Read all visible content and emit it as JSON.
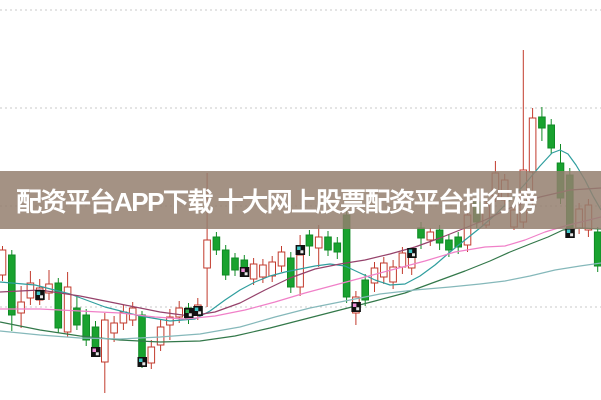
{
  "banner": {
    "headline": "配资平台APP下载 十大网上股票配资平台排行榜",
    "bg_color": "rgba(148,127,111,0.85)",
    "text_color": "#ffffff"
  },
  "chart_data": {
    "type": "candlestick",
    "title": "",
    "xlabel": "",
    "ylabel": "",
    "grid": "dashed-horizontal",
    "legend": "none",
    "axis_labels_visible": false,
    "note": "values are in chart units v; pixel y = 400 - v; inverted unlabeled price axis",
    "ylim": [
      0,
      400
    ],
    "x0": 2.5,
    "pitch": 9.3,
    "candle_width": 6.6,
    "gridline_values": [
      390,
      292,
      194,
      93
    ],
    "candles": [
      [
        125,
        154,
        119,
        150
      ],
      [
        145,
        150,
        69,
        85
      ],
      [
        87,
        114,
        72,
        98
      ],
      [
        102,
        129,
        95,
        117
      ],
      [
        100,
        121,
        95,
        112
      ],
      [
        107,
        130,
        100,
        116
      ],
      [
        117,
        122,
        67,
        72
      ],
      [
        68,
        128,
        63,
        113
      ],
      [
        92,
        103,
        70,
        75
      ],
      [
        85,
        91,
        54,
        60
      ],
      [
        73,
        79,
        47,
        52
      ],
      [
        38,
        87,
        7,
        80
      ],
      [
        67,
        84,
        58,
        77
      ],
      [
        77,
        95,
        70,
        88
      ],
      [
        80,
        98,
        74,
        92
      ],
      [
        85,
        89,
        32,
        38
      ],
      [
        37,
        60,
        31,
        53
      ],
      [
        55,
        80,
        49,
        73
      ],
      [
        75,
        91,
        60,
        83
      ],
      [
        83,
        99,
        77,
        92
      ],
      [
        92,
        97,
        76,
        82
      ],
      [
        85,
        102,
        80,
        95
      ],
      [
        132,
        227,
        93,
        160
      ],
      [
        163,
        168,
        145,
        150
      ],
      [
        150,
        155,
        120,
        125
      ],
      [
        142,
        147,
        124,
        130
      ],
      [
        140,
        145,
        124,
        130
      ],
      [
        121,
        142,
        115,
        136
      ],
      [
        123,
        141,
        117,
        135
      ],
      [
        124,
        144,
        118,
        138
      ],
      [
        134,
        154,
        128,
        148
      ],
      [
        142,
        148,
        107,
        113
      ],
      [
        113,
        165,
        104,
        145
      ],
      [
        165,
        170,
        144,
        154
      ],
      [
        152,
        175,
        133,
        163
      ],
      [
        163,
        169,
        144,
        150
      ],
      [
        157,
        163,
        141,
        148
      ],
      [
        185,
        190,
        97,
        103
      ],
      [
        87,
        109,
        75,
        103
      ],
      [
        120,
        126,
        94,
        100
      ],
      [
        117,
        138,
        108,
        132
      ],
      [
        123,
        143,
        116,
        137
      ],
      [
        118,
        140,
        111,
        133
      ],
      [
        133,
        153,
        126,
        147
      ],
      [
        132,
        151,
        125,
        145
      ],
      [
        172,
        178,
        151,
        162
      ],
      [
        160,
        172,
        154,
        168
      ],
      [
        170,
        175,
        150,
        157
      ],
      [
        160,
        165,
        143,
        150
      ],
      [
        163,
        168,
        146,
        153
      ],
      [
        155,
        192,
        148,
        185
      ],
      [
        198,
        204,
        172,
        178
      ],
      [
        175,
        202,
        172,
        195
      ],
      [
        204,
        239,
        198,
        227
      ],
      [
        200,
        226,
        193,
        220
      ],
      [
        173,
        198,
        170,
        190
      ],
      [
        178,
        350,
        172,
        230
      ],
      [
        228,
        292,
        195,
        282
      ],
      [
        283,
        293,
        259,
        272
      ],
      [
        275,
        281,
        246,
        252
      ],
      [
        237,
        256,
        196,
        202
      ],
      [
        225,
        232,
        166,
        172
      ],
      [
        172,
        197,
        166,
        191
      ],
      [
        170,
        201,
        163,
        195
      ],
      [
        168,
        173,
        128,
        134
      ]
    ],
    "event_markers": [
      {
        "i": 4,
        "v": 105,
        "kind": "teal"
      },
      {
        "i": 10,
        "v": 48,
        "kind": "pink"
      },
      {
        "i": 15,
        "v": 38,
        "kind": "teal"
      },
      {
        "i": 20,
        "v": 87,
        "kind": "green"
      },
      {
        "i": 21,
        "v": 89,
        "kind": "teal"
      },
      {
        "i": 26,
        "v": 128,
        "kind": "pink"
      },
      {
        "i": 32,
        "v": 150,
        "kind": "teal"
      },
      {
        "i": 38,
        "v": 93,
        "kind": "pink"
      },
      {
        "i": 44,
        "v": 147,
        "kind": "teal"
      },
      {
        "i": 61,
        "v": 167,
        "kind": "teal"
      }
    ],
    "ma_series": [
      {
        "name": "ma-teal-fast",
        "color": "#2f9e9e",
        "points": [
          [
            0,
            118
          ],
          [
            35,
            115
          ],
          [
            70,
            106
          ],
          [
            105,
            93
          ],
          [
            140,
            84
          ],
          [
            170,
            79
          ],
          [
            195,
            81
          ],
          [
            210,
            89
          ],
          [
            225,
            100
          ],
          [
            240,
            110
          ],
          [
            255,
            118
          ],
          [
            270,
            124
          ],
          [
            285,
            128
          ],
          [
            300,
            131
          ],
          [
            315,
            134
          ],
          [
            330,
            136
          ],
          [
            345,
            134
          ],
          [
            360,
            127
          ],
          [
            375,
            120
          ],
          [
            390,
            115
          ],
          [
            405,
            116
          ],
          [
            420,
            124
          ],
          [
            435,
            135
          ],
          [
            450,
            148
          ],
          [
            465,
            160
          ],
          [
            480,
            172
          ],
          [
            495,
            185
          ],
          [
            510,
            200
          ],
          [
            525,
            216
          ],
          [
            540,
            234
          ],
          [
            552,
            247
          ],
          [
            560,
            250
          ],
          [
            568,
            246
          ],
          [
            576,
            235
          ],
          [
            585,
            220
          ],
          [
            593,
            204
          ],
          [
            601,
            190
          ]
        ]
      },
      {
        "name": "ma-maroon",
        "color": "#95426b",
        "points": [
          [
            0,
            108
          ],
          [
            40,
            110
          ],
          [
            80,
            104
          ],
          [
            120,
            96
          ],
          [
            160,
            88
          ],
          [
            190,
            84
          ],
          [
            215,
            88
          ],
          [
            240,
            97
          ],
          [
            265,
            110
          ],
          [
            290,
            122
          ],
          [
            315,
            131
          ],
          [
            340,
            136
          ],
          [
            365,
            140
          ],
          [
            390,
            146
          ],
          [
            415,
            153
          ],
          [
            440,
            162
          ],
          [
            465,
            172
          ],
          [
            485,
            180
          ],
          [
            510,
            192
          ],
          [
            540,
            203
          ],
          [
            570,
            210
          ],
          [
            601,
            212
          ]
        ]
      },
      {
        "name": "ma-pink",
        "color": "#f080c8",
        "points": [
          [
            0,
            91
          ],
          [
            40,
            91
          ],
          [
            80,
            89
          ],
          [
            120,
            87
          ],
          [
            155,
            83
          ],
          [
            185,
            81
          ],
          [
            215,
            84
          ],
          [
            245,
            90
          ],
          [
            275,
            98
          ],
          [
            305,
            107
          ],
          [
            335,
            115
          ],
          [
            365,
            123
          ],
          [
            395,
            131
          ],
          [
            425,
            139
          ],
          [
            455,
            148
          ],
          [
            485,
            153
          ],
          [
            505,
            154
          ],
          [
            525,
            160
          ],
          [
            545,
            168
          ],
          [
            565,
            174
          ],
          [
            585,
            179
          ],
          [
            601,
            183
          ]
        ]
      },
      {
        "name": "ma-darkgreen",
        "color": "#33784a",
        "points": [
          [
            0,
            78
          ],
          [
            40,
            70
          ],
          [
            80,
            64
          ],
          [
            120,
            60
          ],
          [
            160,
            58
          ],
          [
            200,
            59
          ],
          [
            235,
            64
          ],
          [
            270,
            72
          ],
          [
            305,
            81
          ],
          [
            340,
            90
          ],
          [
            375,
            99
          ],
          [
            405,
            107
          ],
          [
            435,
            118
          ],
          [
            465,
            129
          ],
          [
            490,
            139
          ],
          [
            510,
            148
          ],
          [
            530,
            156
          ],
          [
            548,
            163
          ],
          [
            563,
            170
          ],
          [
            580,
            172
          ],
          [
            601,
            171
          ]
        ]
      },
      {
        "name": "ma-steel-slow",
        "color": "#85b8ba",
        "points": [
          [
            0,
            69
          ],
          [
            40,
            65
          ],
          [
            80,
            62
          ],
          [
            120,
            61
          ],
          [
            160,
            63
          ],
          [
            200,
            66
          ],
          [
            240,
            73
          ],
          [
            275,
            83
          ],
          [
            310,
            92
          ],
          [
            345,
            99
          ],
          [
            380,
            106
          ],
          [
            415,
            110
          ],
          [
            450,
            113
          ],
          [
            480,
            116
          ],
          [
            505,
            119
          ],
          [
            530,
            124
          ],
          [
            555,
            130
          ],
          [
            580,
            134
          ],
          [
            601,
            137
          ]
        ]
      }
    ],
    "colors": {
      "bull_stroke": "#c23a2c",
      "bull_fill": "#ffffff",
      "bear_stroke": "#0f8a24",
      "bear_fill": "#19a22f",
      "gridline": "#c9c9c9",
      "background": "#ffffff",
      "marker_box": "#111111",
      "marker_glyphs": {
        "teal": "#40c8c8",
        "pink": "#f090d8",
        "green": "#30b050"
      }
    }
  }
}
